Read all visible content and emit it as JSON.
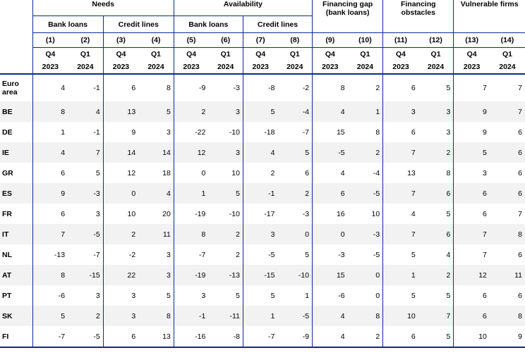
{
  "groups": {
    "needs": "Needs",
    "availability": "Availability",
    "financing_gap_line1": "Financing gap",
    "financing_gap_line2": "(bank loans)",
    "financing_obstacles_line1": "Financing",
    "financing_obstacles_line2": "obstacles",
    "vulnerable_firms": "Vulnerable firms"
  },
  "subgroups": {
    "needs_bank_loans": "Bank loans",
    "needs_credit_lines": "Credit lines",
    "avail_bank_loans": "Bank loans",
    "avail_credit_lines": "Credit lines"
  },
  "column_numbers": [
    "(1)",
    "(2)",
    "(3)",
    "(4)",
    "(5)",
    "(6)",
    "(7)",
    "(8)",
    "(9)",
    "(10)",
    "(11)",
    "(12)",
    "(13)",
    "(14)"
  ],
  "quarters": [
    "Q4",
    "Q1",
    "Q4",
    "Q1",
    "Q4",
    "Q1",
    "Q4",
    "Q1",
    "Q4",
    "Q1",
    "Q4",
    "Q1",
    "Q4",
    "Q1"
  ],
  "years": [
    "2023",
    "2024",
    "2023",
    "2024",
    "2023",
    "2024",
    "2023",
    "2024",
    "2023",
    "2024",
    "2023",
    "2024",
    "2023",
    "2024"
  ],
  "rows": [
    {
      "label_line1": "Euro",
      "label_line2": "area",
      "values": [
        "4",
        "-1",
        "6",
        "8",
        "-9",
        "-3",
        "-8",
        "-2",
        "8",
        "2",
        "6",
        "5",
        "7",
        "7"
      ]
    },
    {
      "label_line1": "BE",
      "label_line2": "",
      "values": [
        "8",
        "4",
        "13",
        "5",
        "2",
        "3",
        "5",
        "-4",
        "4",
        "1",
        "3",
        "3",
        "9",
        "7"
      ]
    },
    {
      "label_line1": "DE",
      "label_line2": "",
      "values": [
        "1",
        "-1",
        "9",
        "3",
        "-22",
        "-10",
        "-18",
        "-7",
        "15",
        "8",
        "6",
        "3",
        "9",
        "6"
      ]
    },
    {
      "label_line1": "IE",
      "label_line2": "",
      "values": [
        "4",
        "7",
        "14",
        "14",
        "12",
        "3",
        "4",
        "5",
        "-5",
        "2",
        "7",
        "2",
        "5",
        "6"
      ]
    },
    {
      "label_line1": "GR",
      "label_line2": "",
      "values": [
        "6",
        "5",
        "12",
        "18",
        "0",
        "10",
        "2",
        "6",
        "4",
        "-4",
        "13",
        "8",
        "3",
        "6"
      ]
    },
    {
      "label_line1": "ES",
      "label_line2": "",
      "values": [
        "9",
        "-3",
        "0",
        "4",
        "1",
        "5",
        "-1",
        "2",
        "6",
        "-5",
        "7",
        "6",
        "6",
        "6"
      ]
    },
    {
      "label_line1": "FR",
      "label_line2": "",
      "values": [
        "6",
        "3",
        "10",
        "20",
        "-19",
        "-10",
        "-17",
        "-3",
        "16",
        "10",
        "4",
        "5",
        "6",
        "7"
      ]
    },
    {
      "label_line1": "IT",
      "label_line2": "",
      "values": [
        "7",
        "-5",
        "2",
        "11",
        "8",
        "2",
        "3",
        "0",
        "0",
        "-3",
        "7",
        "6",
        "7",
        "8"
      ]
    },
    {
      "label_line1": "NL",
      "label_line2": "",
      "values": [
        "-13",
        "-7",
        "-2",
        "3",
        "-7",
        "2",
        "-5",
        "5",
        "-3",
        "-5",
        "5",
        "4",
        "7",
        "6"
      ]
    },
    {
      "label_line1": "AT",
      "label_line2": "",
      "values": [
        "8",
        "-15",
        "22",
        "3",
        "-19",
        "-13",
        "-15",
        "-10",
        "15",
        "0",
        "1",
        "2",
        "12",
        "11"
      ]
    },
    {
      "label_line1": "PT",
      "label_line2": "",
      "values": [
        "-6",
        "3",
        "3",
        "5",
        "3",
        "5",
        "5",
        "1",
        "-6",
        "0",
        "5",
        "5",
        "6",
        "6"
      ]
    },
    {
      "label_line1": "SK",
      "label_line2": "",
      "values": [
        "5",
        "2",
        "3",
        "8",
        "-1",
        "-11",
        "1",
        "-5",
        "4",
        "8",
        "10",
        "7",
        "6",
        "8"
      ]
    },
    {
      "label_line1": "FI",
      "label_line2": "",
      "values": [
        "-7",
        "-5",
        "6",
        "13",
        "-16",
        "-8",
        "-7",
        "-9",
        "4",
        "2",
        "6",
        "5",
        "10",
        "9"
      ]
    }
  ],
  "colors": {
    "rule": "#0b2b8c",
    "stripe": "#f2f2f2"
  }
}
